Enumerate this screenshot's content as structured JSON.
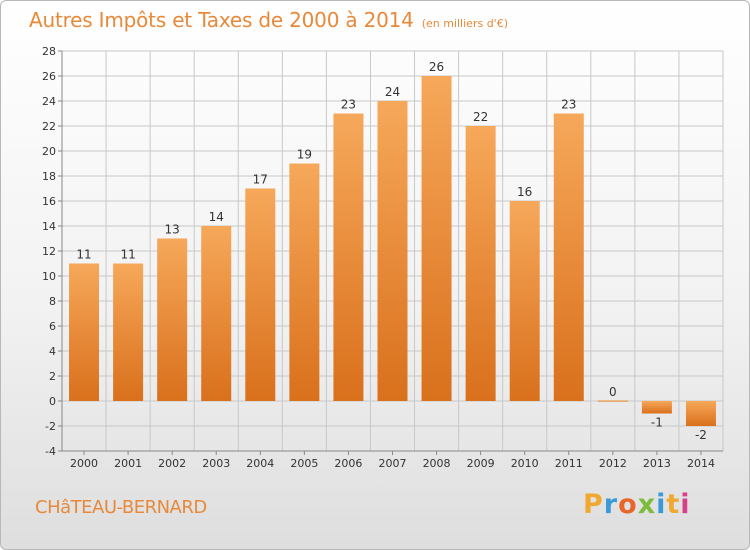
{
  "title": {
    "main": "Autres Impôts et Taxes de 2000 à 2014",
    "unit": "(en milliers d'€)"
  },
  "commune": "CHâTEAU-BERNARD",
  "logo": {
    "text": "Proxiti",
    "letter_colors": [
      "#f0a830",
      "#3a9ad8",
      "#e8662a",
      "#7cbc3c",
      "#3a9ad8",
      "#f0a830",
      "#d8408a"
    ]
  },
  "colors": {
    "bar_light": "#f6a85a",
    "bar_dark": "#d9701c",
    "grid": "#c8c8c8",
    "text": "#333333"
  },
  "chart_data": {
    "type": "bar",
    "categories": [
      "2000",
      "2001",
      "2002",
      "2003",
      "2004",
      "2005",
      "2006",
      "2007",
      "2008",
      "2009",
      "2010",
      "2011",
      "2012",
      "2013",
      "2014"
    ],
    "values": [
      11,
      11,
      13,
      14,
      17,
      19,
      23,
      24,
      26,
      22,
      16,
      23,
      0,
      -1,
      -2
    ],
    "ylim": [
      -4,
      28
    ],
    "yticks": [
      -4,
      -2,
      0,
      2,
      4,
      6,
      8,
      10,
      12,
      14,
      16,
      18,
      20,
      22,
      24,
      26,
      28
    ],
    "grid": true
  }
}
